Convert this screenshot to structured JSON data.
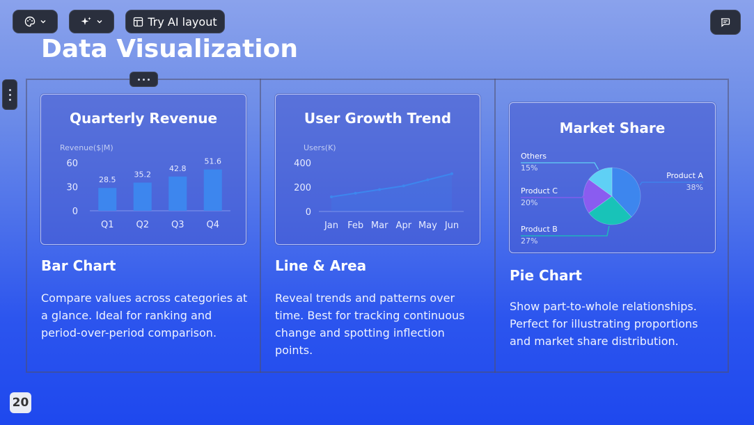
{
  "toolbar": {
    "theme_icon": "palette-icon",
    "ai_icon": "sparkle-icon",
    "layout_icon": "layout-icon",
    "layout_label": "Try AI layout",
    "comment_icon": "comment-icon"
  },
  "slide": {
    "title": "Data Visualization",
    "page_number": "20",
    "columns": [
      {
        "heading": "Bar Chart",
        "text": "Compare values across categories at a glance. Ideal for ranking and period-over-period comparison."
      },
      {
        "heading": "Line & Area",
        "text": "Reveal trends and patterns over time. Best for tracking continuous change and spotting inflection points."
      },
      {
        "heading": "Pie Chart",
        "text": "Show part-to-whole relationships. Perfect for illustrating proportions and market share distribution."
      }
    ]
  },
  "chart_data": [
    {
      "type": "bar",
      "title": "Quarterly Revenue",
      "ylabel": "Revenue($|M)",
      "categories": [
        "Q1",
        "Q2",
        "Q3",
        "Q4"
      ],
      "values": [
        28.5,
        35.2,
        42.8,
        51.6
      ],
      "value_labels": [
        "28.5",
        "35.2",
        "42.8",
        "51.6"
      ],
      "yticks": [
        "60",
        "30",
        "0"
      ],
      "ylim": [
        0,
        60
      ],
      "color": "#3d86ee"
    },
    {
      "type": "area",
      "title": "User Growth Trend",
      "ylabel": "Users(K)",
      "categories": [
        "Jan",
        "Feb",
        "Mar",
        "Apr",
        "May",
        "Jun"
      ],
      "values": [
        120,
        150,
        180,
        210,
        260,
        310
      ],
      "yticks": [
        "400",
        "200",
        "0"
      ],
      "ylim": [
        0,
        400
      ],
      "color": "#3d86ee"
    },
    {
      "type": "pie",
      "title": "Market Share",
      "slices": [
        {
          "name": "Product A",
          "value": 38,
          "label": "38%",
          "color": "#3d86ee"
        },
        {
          "name": "Product B",
          "value": 27,
          "label": "27%",
          "color": "#18c3b8"
        },
        {
          "name": "Product C",
          "value": 20,
          "label": "20%",
          "color": "#8a5cf0"
        },
        {
          "name": "Others",
          "value": 15,
          "label": "15%",
          "color": "#5fd0f5"
        }
      ]
    }
  ]
}
